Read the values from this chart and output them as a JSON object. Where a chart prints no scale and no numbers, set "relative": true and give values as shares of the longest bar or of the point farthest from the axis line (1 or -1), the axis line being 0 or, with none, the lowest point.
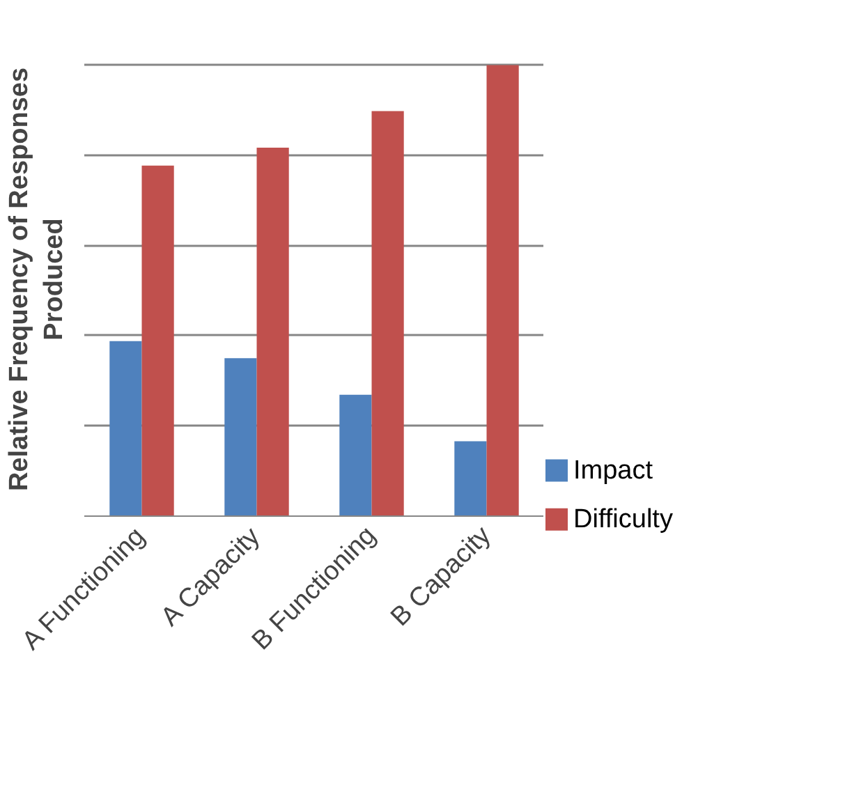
{
  "chart_data": {
    "type": "bar",
    "ylabel": "Relative Frequency of Responses\nProduced",
    "relative": true,
    "grid": "y",
    "legend": "bottom right",
    "categories": [
      "A Functioning",
      "A Capacity",
      "B Functioning",
      "B Capacity"
    ],
    "series": [
      {
        "name": "Impact",
        "color": "#4f81bd",
        "values": [
          0.388,
          0.35,
          0.269,
          0.166
        ]
      },
      {
        "name": "Difficulty",
        "color": "#c0504d",
        "values": [
          0.777,
          0.817,
          0.898,
          1.0
        ]
      }
    ]
  }
}
